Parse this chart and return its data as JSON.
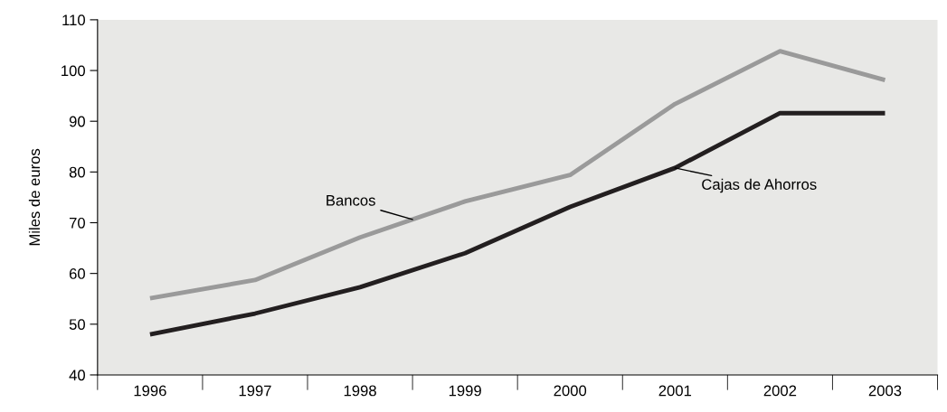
{
  "chart_data": {
    "type": "line",
    "ylabel": "Miles de euros",
    "categories": [
      "1996",
      "1997",
      "1998",
      "1999",
      "2000",
      "2001",
      "2002",
      "2003"
    ],
    "series": [
      {
        "name": "Bancos",
        "color": "#9a9a9a",
        "values": [
          55.1,
          58.7,
          67.1,
          74.2,
          79.4,
          93.4,
          103.8,
          98.1
        ]
      },
      {
        "name": "Cajas de Ahorros",
        "color": "#231f20",
        "values": [
          48.0,
          52.1,
          57.3,
          64.0,
          73.1,
          80.8,
          91.6,
          91.6
        ]
      }
    ],
    "ylim": [
      40,
      110
    ],
    "yticks": [
      40,
      50,
      60,
      70,
      80,
      90,
      100,
      110
    ],
    "grid": false,
    "legend": false,
    "marker": "none",
    "line_style": "solid"
  }
}
